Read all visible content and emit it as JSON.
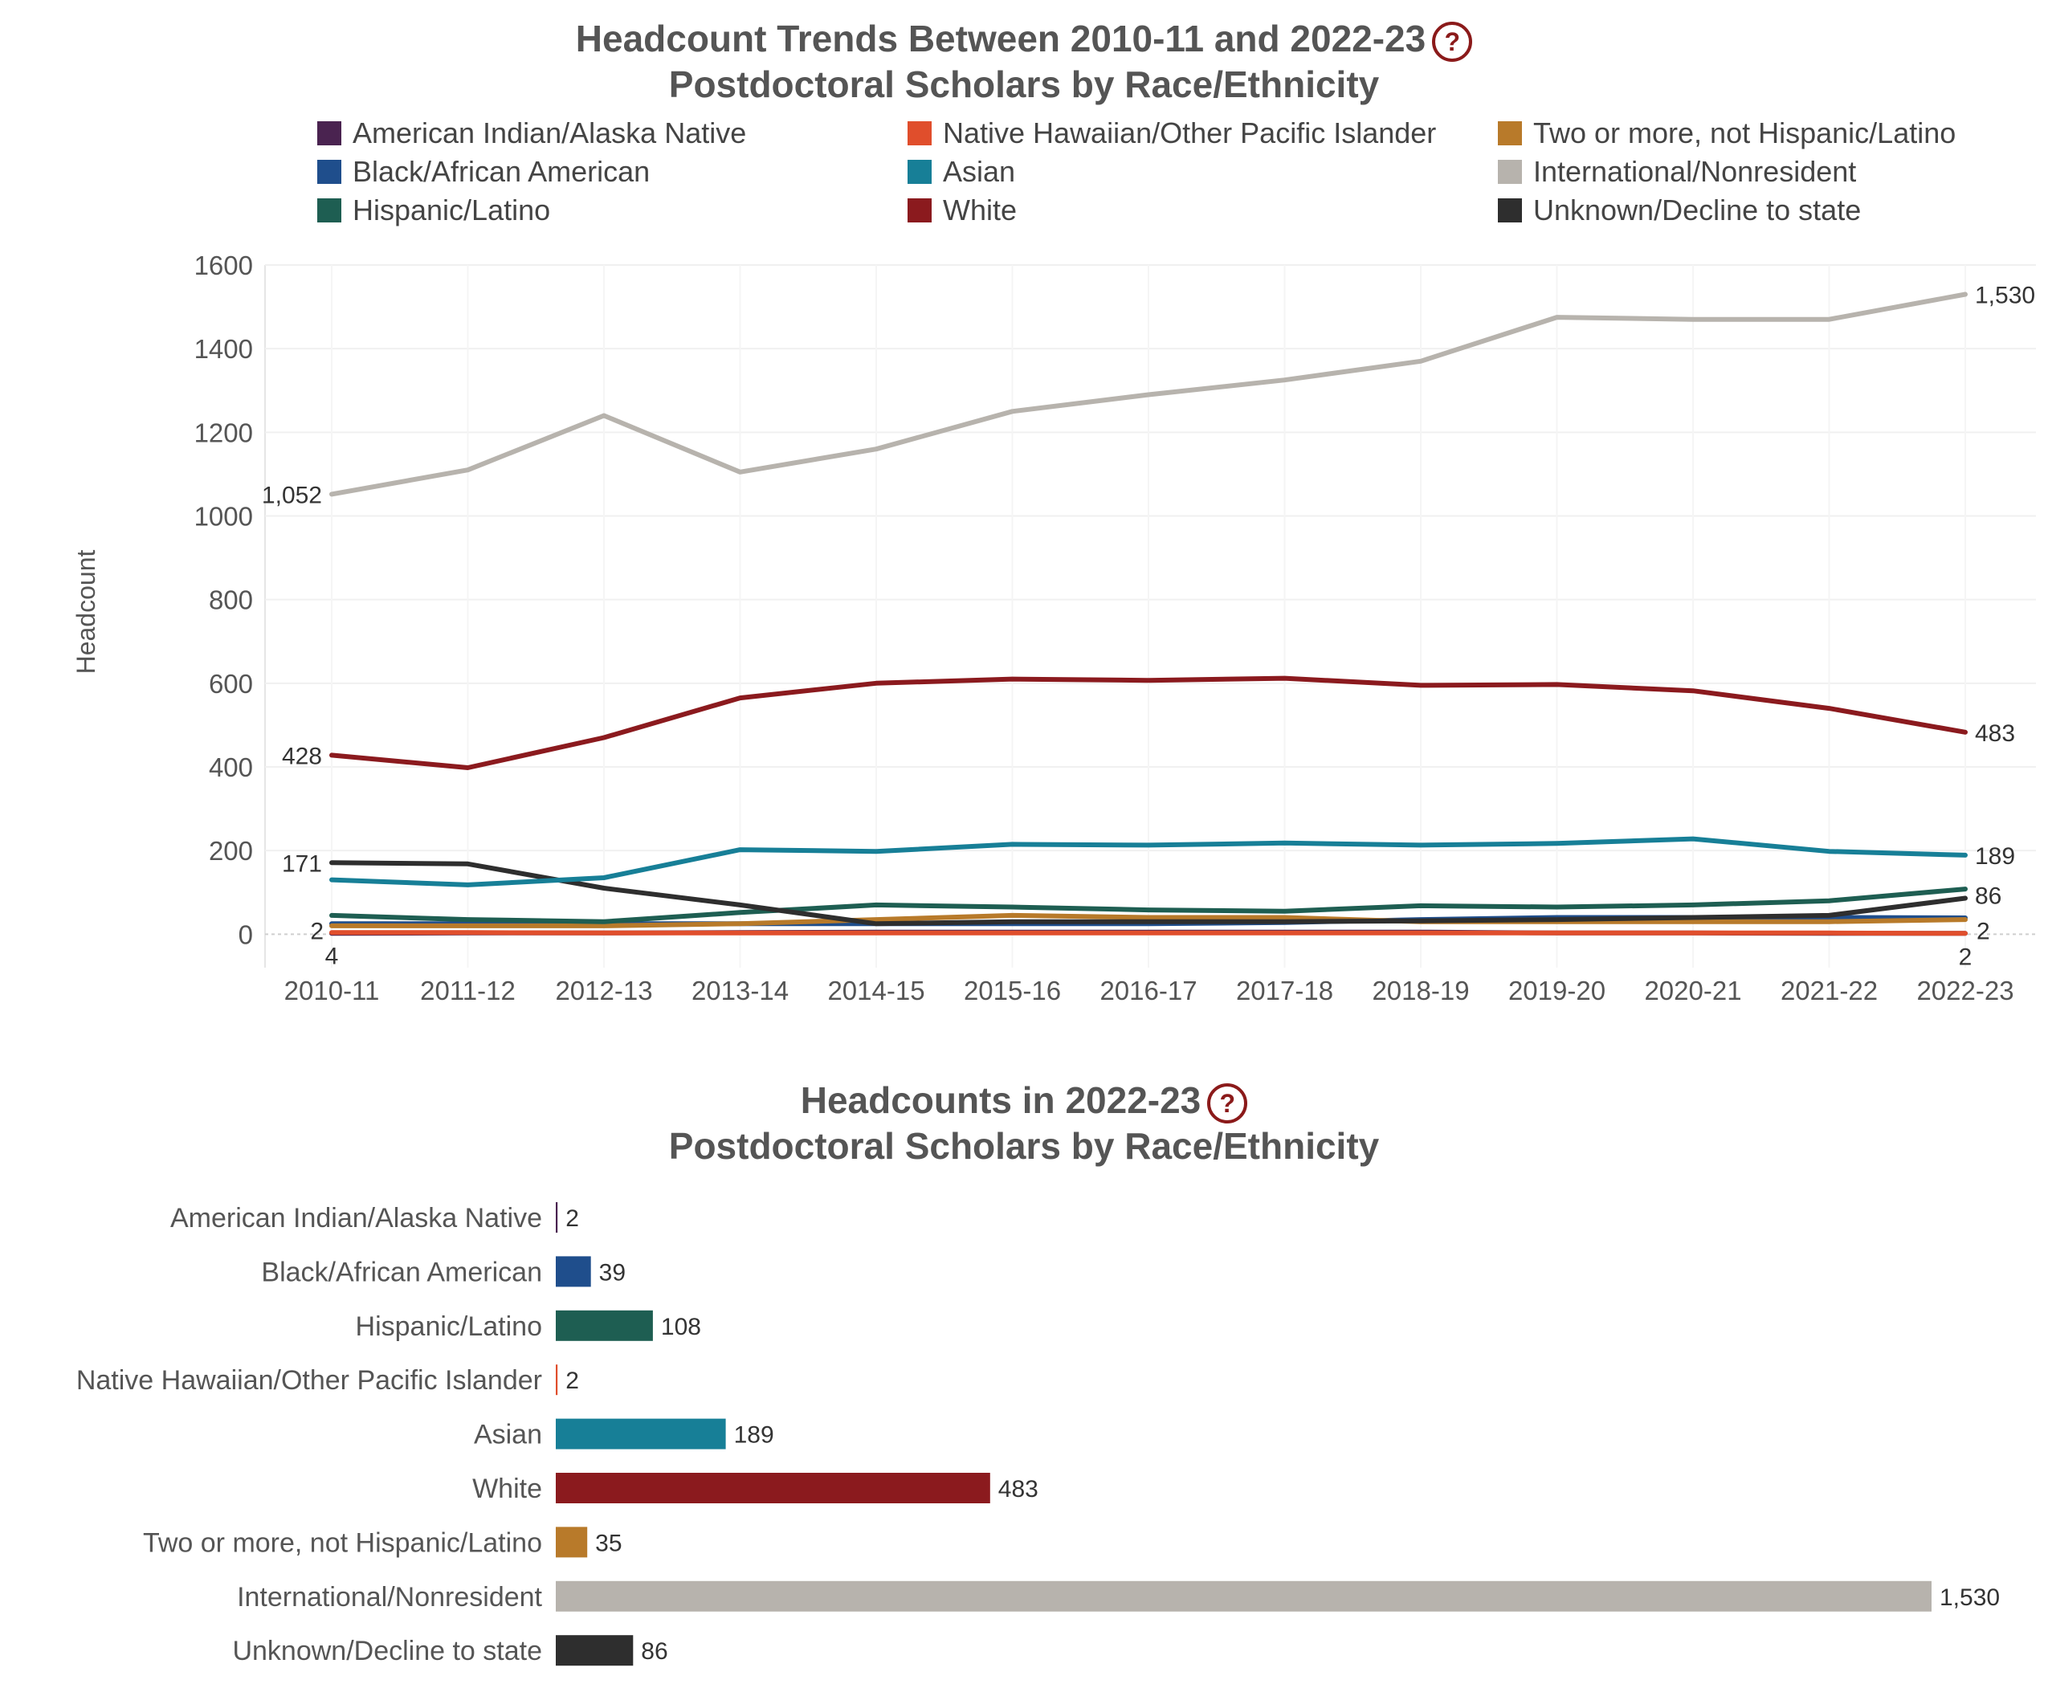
{
  "line_title": {
    "line1": "Headcount Trends Between 2010-11 and 2022-23",
    "line2": "Postdoctoral Scholars by Race/Ethnicity"
  },
  "bar_title": {
    "line1": "Headcounts in 2022-23",
    "line2": "Postdoctoral Scholars by Race/Ethnicity"
  },
  "help_glyph": "?",
  "colors": {
    "American Indian/Alaska Native": "#4a2350",
    "Native Hawaiian/Other Pacific Islander": "#e04e2c",
    "Two or more, not Hispanic/Latino": "#b87a2a",
    "Black/African American": "#1f4e8c",
    "Asian": "#177f97",
    "International/Nonresident": "#b7b3ad",
    "Hispanic/Latino": "#1e5e52",
    "White": "#8b1a1e",
    "Unknown/Decline to state": "#2e2e2e"
  },
  "legend": [
    "American Indian/Alaska Native",
    "Native Hawaiian/Other Pacific Islander",
    "Two or more, not Hispanic/Latino",
    "Black/African American",
    "Asian",
    "International/Nonresident",
    "Hispanic/Latino",
    "White",
    "Unknown/Decline to state"
  ],
  "chart_data": [
    {
      "type": "line",
      "title": "Headcount Trends Between 2010-11 and 2022-23 Postdoctoral Scholars by Race/Ethnicity",
      "xlabel": "",
      "ylabel": "Headcount",
      "ylim": [
        -80,
        1600
      ],
      "yticks": [
        0,
        200,
        400,
        600,
        800,
        1000,
        1200,
        1400,
        1600
      ],
      "grid": true,
      "legend_position": "top",
      "x": [
        "2010-11",
        "2011-12",
        "2012-13",
        "2013-14",
        "2014-15",
        "2015-16",
        "2016-17",
        "2017-18",
        "2018-19",
        "2019-20",
        "2020-21",
        "2021-22",
        "2022-23"
      ],
      "series": [
        {
          "name": "International/Nonresident",
          "values": [
            1052,
            1110,
            1240,
            1105,
            1160,
            1250,
            1290,
            1325,
            1370,
            1475,
            1470,
            1470,
            1530
          ]
        },
        {
          "name": "White",
          "values": [
            428,
            398,
            470,
            565,
            600,
            610,
            607,
            612,
            595,
            597,
            582,
            540,
            483
          ]
        },
        {
          "name": "Asian",
          "values": [
            130,
            118,
            135,
            202,
            198,
            215,
            213,
            218,
            213,
            217,
            228,
            198,
            189
          ]
        },
        {
          "name": "Unknown/Decline to state",
          "values": [
            171,
            168,
            110,
            70,
            25,
            30,
            30,
            30,
            32,
            35,
            40,
            45,
            86
          ]
        },
        {
          "name": "Hispanic/Latino",
          "values": [
            45,
            35,
            30,
            52,
            70,
            65,
            58,
            55,
            68,
            65,
            70,
            80,
            108
          ]
        },
        {
          "name": "Two or more, not Hispanic/Latino",
          "values": [
            20,
            20,
            20,
            25,
            35,
            45,
            40,
            40,
            30,
            30,
            30,
            30,
            35
          ]
        },
        {
          "name": "Black/African American",
          "values": [
            25,
            25,
            25,
            25,
            25,
            25,
            25,
            28,
            35,
            40,
            40,
            40,
            39
          ]
        },
        {
          "name": "Native Hawaiian/Other Pacific Islander",
          "values": [
            4,
            4,
            3,
            3,
            3,
            3,
            3,
            3,
            3,
            3,
            3,
            3,
            2
          ]
        },
        {
          "name": "American Indian/Alaska Native",
          "values": [
            2,
            3,
            3,
            4,
            5,
            5,
            5,
            5,
            5,
            3,
            3,
            2,
            2
          ]
        }
      ],
      "data_labels": [
        {
          "series": "International/Nonresident",
          "index": 0,
          "text": "1,052"
        },
        {
          "series": "International/Nonresident",
          "index": 12,
          "text": "1,530"
        },
        {
          "series": "White",
          "index": 0,
          "text": "428"
        },
        {
          "series": "White",
          "index": 12,
          "text": "483"
        },
        {
          "series": "Unknown/Decline to state",
          "index": 0,
          "text": "171"
        },
        {
          "series": "Asian",
          "index": 12,
          "text": "189"
        },
        {
          "series": "Unknown/Decline to state",
          "index": 12,
          "text": "86"
        },
        {
          "series": "American Indian/Alaska Native",
          "index": 0,
          "text": "2"
        },
        {
          "series": "Native Hawaiian/Other Pacific Islander",
          "index": 0,
          "text": "4"
        },
        {
          "series": "American Indian/Alaska Native",
          "index": 12,
          "text": "2"
        },
        {
          "series": "Native Hawaiian/Other Pacific Islander",
          "index": 12,
          "text": "2"
        }
      ]
    },
    {
      "type": "bar",
      "orientation": "horizontal",
      "title": "Headcounts in 2022-23 Postdoctoral Scholars by Race/Ethnicity",
      "categories": [
        "American Indian/Alaska Native",
        "Black/African American",
        "Hispanic/Latino",
        "Native Hawaiian/Other Pacific Islander",
        "Asian",
        "White",
        "Two or more, not Hispanic/Latino",
        "International/Nonresident",
        "Unknown/Decline to state"
      ],
      "values": [
        2,
        39,
        108,
        2,
        189,
        483,
        35,
        1530,
        86
      ],
      "labels": [
        "2",
        "39",
        "108",
        "2",
        "189",
        "483",
        "35",
        "1,530",
        "86"
      ]
    }
  ]
}
